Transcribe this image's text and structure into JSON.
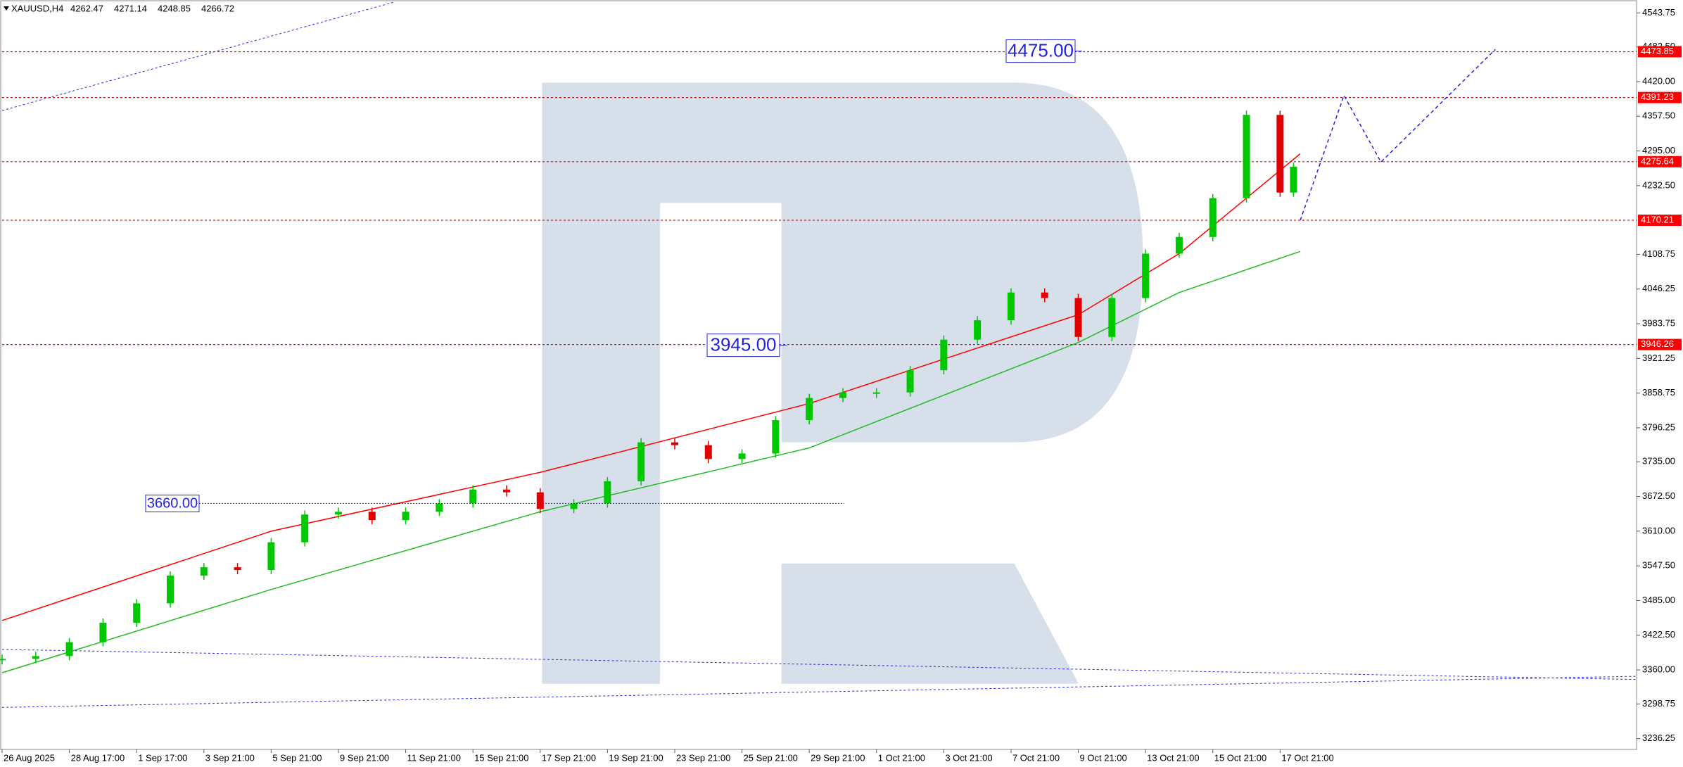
{
  "header": {
    "symbol": "XAUUSD,H4",
    "ohlc": [
      4262.47,
      4271.14,
      4248.85,
      4266.72
    ]
  },
  "chart_data": {
    "type": "candlestick",
    "xlim": [
      0,
      24.3
    ],
    "ylim": [
      3216.8,
      4567
    ],
    "xticks": [
      {
        "value": 0,
        "label": "26 Aug 2025"
      },
      {
        "value": 1,
        "label": "28 Aug 17:00"
      },
      {
        "value": 2,
        "label": "1 Sep 17:00"
      },
      {
        "value": 3,
        "label": "3 Sep 21:00"
      },
      {
        "value": 4,
        "label": "5 Sep 21:00"
      },
      {
        "value": 5,
        "label": "9 Sep 21:00"
      },
      {
        "value": 6,
        "label": "11 Sep 21:00"
      },
      {
        "value": 7,
        "label": "15 Sep 21:00"
      },
      {
        "value": 8,
        "label": "17 Sep 21:00"
      },
      {
        "value": 9,
        "label": "19 Sep 21:00"
      },
      {
        "value": 10,
        "label": "23 Sep 21:00"
      },
      {
        "value": 11,
        "label": "25 Sep 21:00"
      },
      {
        "value": 12,
        "label": "29 Sep 21:00"
      },
      {
        "value": 13,
        "label": "1 Oct 21:00"
      },
      {
        "value": 14,
        "label": "3 Oct 21:00"
      },
      {
        "value": 15,
        "label": "7 Oct 21:00"
      },
      {
        "value": 16,
        "label": "9 Oct 21:00"
      },
      {
        "value": 17,
        "label": "13 Oct 21:00"
      },
      {
        "value": 18,
        "label": "15 Oct 21:00"
      },
      {
        "value": 19,
        "label": "17 Oct 21:00"
      }
    ],
    "yticks": [
      4543.75,
      {
        "value": 4482.5,
        "label": "4482.50"
      },
      {
        "value": 4420,
        "label": "4420.00"
      },
      {
        "value": 4357.5,
        "label": "4357.50"
      },
      {
        "value": 4295,
        "label": "4295.00"
      },
      {
        "value": 4232.5,
        "label": "4232.50"
      },
      4108.75,
      4046.25,
      3983.75,
      3921.25,
      3858.75,
      3796.25,
      {
        "value": 3735,
        "label": "3735.00"
      },
      {
        "value": 3672.5,
        "label": "3672.50"
      },
      {
        "value": 3610,
        "label": "3610.00"
      },
      {
        "value": 3547.5,
        "label": "3547.50"
      },
      {
        "value": 3485,
        "label": "3485.00"
      },
      {
        "value": 3422.5,
        "label": "3422.50"
      },
      {
        "value": 3360,
        "label": "3360.00"
      },
      3298.75,
      3236.25
    ],
    "x": [
      0,
      0.5,
      1,
      1.5,
      2,
      2.5,
      3,
      3.5,
      4,
      4.5,
      5,
      5.5,
      6,
      6.5,
      7,
      7.5,
      8,
      8.5,
      9,
      9.5,
      10,
      10.5,
      11,
      11.5,
      12,
      12.5,
      13,
      13.5,
      14,
      14.5,
      15,
      15.5,
      16,
      16.5,
      17,
      17.5,
      18,
      18.5,
      19,
      19.2
    ],
    "close": [
      3380,
      3385,
      3410,
      3445,
      3480,
      3530,
      3545,
      3540,
      3590,
      3640,
      3645,
      3630,
      3645,
      3660,
      3685,
      3680,
      3650,
      3660,
      3700,
      3770,
      3765,
      3740,
      3750,
      3810,
      3850,
      3860,
      3860,
      3900,
      3955,
      3990,
      4040,
      4030,
      3960,
      4030,
      4110,
      4140,
      4210,
      4360,
      4220,
      4266.72
    ],
    "up_color": "#00c800",
    "down_color": "#e00000",
    "series": [
      {
        "color": "#ff0000",
        "x": [
          0,
          4,
          8,
          12,
          16,
          17.5,
          19.3
        ],
        "values": [
          3449,
          3610,
          3716,
          3840,
          4000,
          4110,
          4290
        ]
      },
      {
        "color": "#22bb22",
        "x": [
          0,
          4,
          8,
          12,
          16,
          17.5,
          19.3
        ],
        "values": [
          3355,
          3505,
          3645,
          3760,
          3950,
          4040,
          4114
        ]
      },
      {
        "color": "#2222dd",
        "dashed": true,
        "x": [
          19.3,
          19.95,
          20.5,
          22.2
        ],
        "values": [
          4170,
          4395,
          4275,
          4478
        ]
      }
    ],
    "levels": [
      4473.85,
      4391.23,
      4275.64,
      4170.21,
      3946.26
    ],
    "level_color": "#ff0000",
    "annotations": [
      {
        "label": "4475.00",
        "value": 4475
      },
      {
        "label": "3945.00",
        "value": 3945
      },
      {
        "label": "3660.00",
        "value": 3660
      }
    ]
  }
}
